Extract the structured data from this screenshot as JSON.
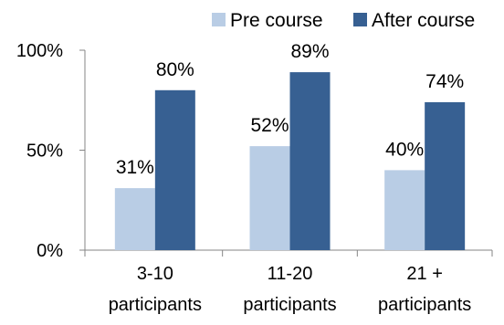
{
  "chart_data": {
    "type": "bar",
    "categories": [
      [
        "3-10",
        "participants"
      ],
      [
        "11-20",
        "participants"
      ],
      [
        "21 +",
        "participants"
      ]
    ],
    "series": [
      {
        "name": "Pre course",
        "color": "#b9cde5",
        "values": [
          31,
          52,
          40
        ],
        "labels": [
          "31%",
          "52%",
          "40%"
        ]
      },
      {
        "name": "After course",
        "color": "#376092",
        "values": [
          80,
          89,
          74
        ],
        "labels": [
          "80%",
          "89%",
          "74%"
        ]
      }
    ],
    "yticks": [
      {
        "value": 0,
        "label": "0%"
      },
      {
        "value": 50,
        "label": "50%"
      },
      {
        "value": 100,
        "label": "100%"
      }
    ],
    "ylim": [
      0,
      100
    ],
    "grid": false,
    "legend_position": "top-right",
    "axis_color": "#868686"
  }
}
